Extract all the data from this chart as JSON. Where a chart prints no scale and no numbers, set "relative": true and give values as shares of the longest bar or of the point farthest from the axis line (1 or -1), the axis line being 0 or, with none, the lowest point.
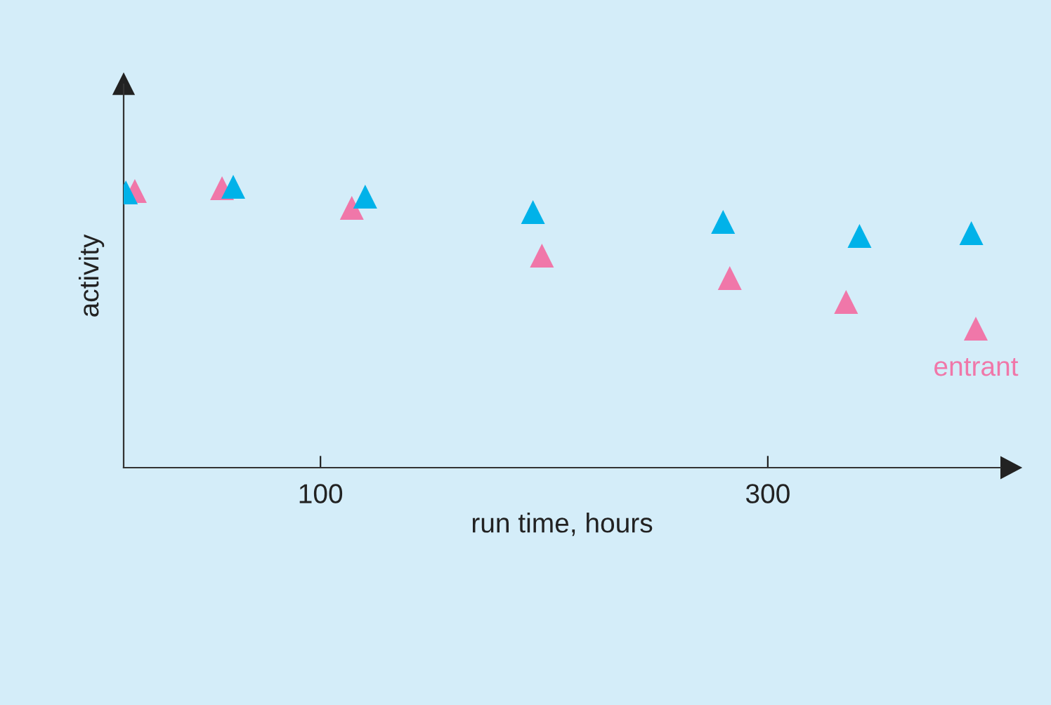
{
  "chart_data": {
    "type": "scatter",
    "xlabel": "run time, hours",
    "ylabel": "activity",
    "relative": true,
    "marker": "triangle",
    "grid": false,
    "legend": false,
    "xlim": [
      12,
      404
    ],
    "xticks": [
      100,
      300
    ],
    "series": [
      {
        "color": "#00b2e9",
        "x": [
          13,
          61,
          120,
          195,
          280,
          341,
          391
        ],
        "values": [
          0.98,
          1.0,
          0.965,
          0.91,
          0.875,
          0.825,
          0.835
        ]
      },
      {
        "name": "entrant",
        "color": "#f077a9",
        "x": [
          17,
          56,
          114,
          199,
          283,
          335,
          393
        ],
        "values": [
          0.985,
          0.995,
          0.925,
          0.755,
          0.675,
          0.59,
          0.495
        ]
      }
    ]
  }
}
